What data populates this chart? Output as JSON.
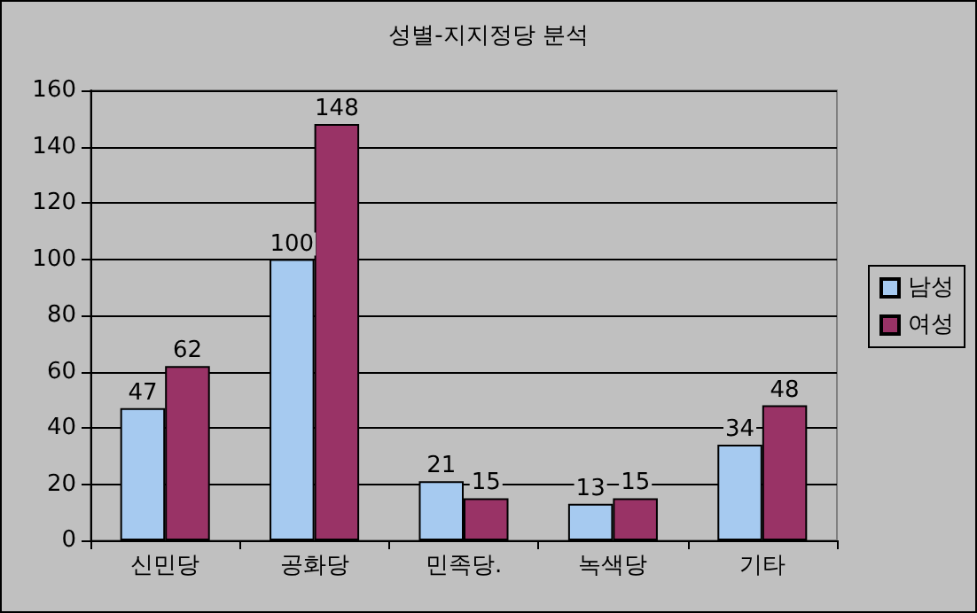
{
  "chart_data": {
    "type": "bar",
    "title": "성별-지지정당 분석",
    "categories": [
      "신민당",
      "공화당",
      "민족당.",
      "녹색당",
      "기타"
    ],
    "series": [
      {
        "name": "남성",
        "color": "#a6caf0",
        "values": [
          47,
          100,
          21,
          13,
          34
        ]
      },
      {
        "name": "여성",
        "color": "#993366",
        "values": [
          62,
          148,
          15,
          15,
          48
        ]
      }
    ],
    "ylim": [
      0,
      160
    ],
    "yticks": [
      0,
      20,
      40,
      60,
      80,
      100,
      120,
      140,
      160
    ],
    "grid": "y",
    "legend": "right",
    "data_labels": true
  }
}
